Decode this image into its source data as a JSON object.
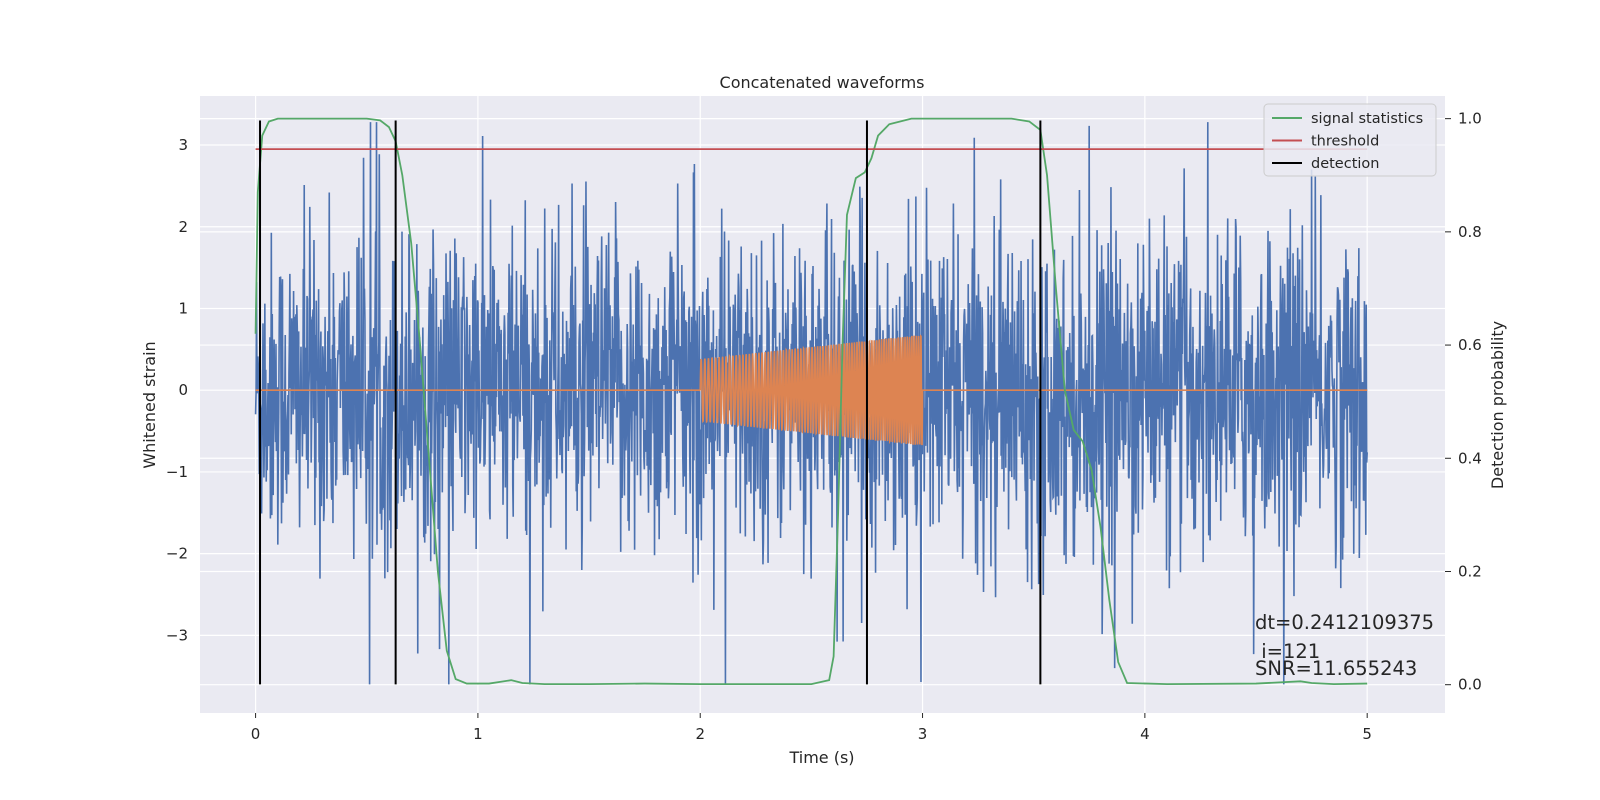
{
  "chart_data": {
    "type": "line",
    "title": "Concatenated waveforms",
    "xlabel": "Time (s)",
    "ylabel_left": "Whitened strain",
    "ylabel_right": "Detection probability",
    "xlim": [
      -0.25,
      5.35
    ],
    "ylim_left": [
      -3.95,
      3.6
    ],
    "ylim_right": [
      -0.05,
      1.04
    ],
    "xticks": [
      0,
      1,
      2,
      3,
      4,
      5
    ],
    "yticks_left": [
      -3,
      -2,
      -1,
      0,
      1,
      2,
      3
    ],
    "yticks_right": [
      0.0,
      0.2,
      0.4,
      0.6,
      0.8,
      1.0
    ],
    "grid": true,
    "background": "#eaeaf2",
    "legend_position": "top-right",
    "series": [
      {
        "name": "",
        "axis": "left",
        "color": "#4c72b0",
        "description_kind": "noise",
        "x_range": [
          0,
          5
        ],
        "sample_count": 2400
      },
      {
        "name": "",
        "axis": "left",
        "color": "#dd8452",
        "description_kind": "injected-chirp",
        "x_range": [
          0,
          5
        ],
        "chirp_start": 2.0,
        "chirp_end": 3.0,
        "amplitude_start": 0.38,
        "amplitude_end": 0.68
      },
      {
        "name": "signal statistics",
        "axis": "right",
        "color": "#55a868",
        "points": [
          [
            0.0,
            0.62
          ],
          [
            0.01,
            0.87
          ],
          [
            0.03,
            0.97
          ],
          [
            0.06,
            0.995
          ],
          [
            0.1,
            1.0
          ],
          [
            0.5,
            1.0
          ],
          [
            0.56,
            0.997
          ],
          [
            0.6,
            0.985
          ],
          [
            0.63,
            0.96
          ],
          [
            0.66,
            0.9
          ],
          [
            0.7,
            0.78
          ],
          [
            0.74,
            0.6
          ],
          [
            0.78,
            0.4
          ],
          [
            0.82,
            0.2
          ],
          [
            0.86,
            0.06
          ],
          [
            0.9,
            0.01
          ],
          [
            0.95,
            0.002
          ],
          [
            1.05,
            0.002
          ],
          [
            1.1,
            0.005
          ],
          [
            1.15,
            0.008
          ],
          [
            1.2,
            0.003
          ],
          [
            1.3,
            0.001
          ],
          [
            1.5,
            0.001
          ],
          [
            1.75,
            0.002
          ],
          [
            2.0,
            0.001
          ],
          [
            2.3,
            0.001
          ],
          [
            2.5,
            0.001
          ],
          [
            2.58,
            0.008
          ],
          [
            2.6,
            0.05
          ],
          [
            2.62,
            0.3
          ],
          [
            2.64,
            0.6
          ],
          [
            2.66,
            0.83
          ],
          [
            2.7,
            0.895
          ],
          [
            2.74,
            0.905
          ],
          [
            2.77,
            0.93
          ],
          [
            2.8,
            0.97
          ],
          [
            2.85,
            0.99
          ],
          [
            2.95,
            1.0
          ],
          [
            3.4,
            1.0
          ],
          [
            3.48,
            0.995
          ],
          [
            3.53,
            0.98
          ],
          [
            3.56,
            0.9
          ],
          [
            3.6,
            0.7
          ],
          [
            3.64,
            0.52
          ],
          [
            3.68,
            0.45
          ],
          [
            3.72,
            0.43
          ],
          [
            3.76,
            0.38
          ],
          [
            3.8,
            0.28
          ],
          [
            3.84,
            0.15
          ],
          [
            3.88,
            0.04
          ],
          [
            3.92,
            0.003
          ],
          [
            4.1,
            0.001
          ],
          [
            4.5,
            0.002
          ],
          [
            4.7,
            0.006
          ],
          [
            4.75,
            0.003
          ],
          [
            4.85,
            0.001
          ],
          [
            5.0,
            0.002
          ]
        ]
      },
      {
        "name": "threshold",
        "axis": "left",
        "color": "#c44e52",
        "x": [
          0,
          5
        ],
        "y": 2.95
      },
      {
        "name": "detection",
        "axis": "left",
        "color": "#000000",
        "x_positions": [
          0.02,
          0.63,
          2.75,
          3.53
        ],
        "y_range": [
          -3.6,
          3.3
        ]
      }
    ],
    "annotations": [
      "dt=0.2412109375",
      " i=121",
      "SNR=11.655243"
    ]
  }
}
